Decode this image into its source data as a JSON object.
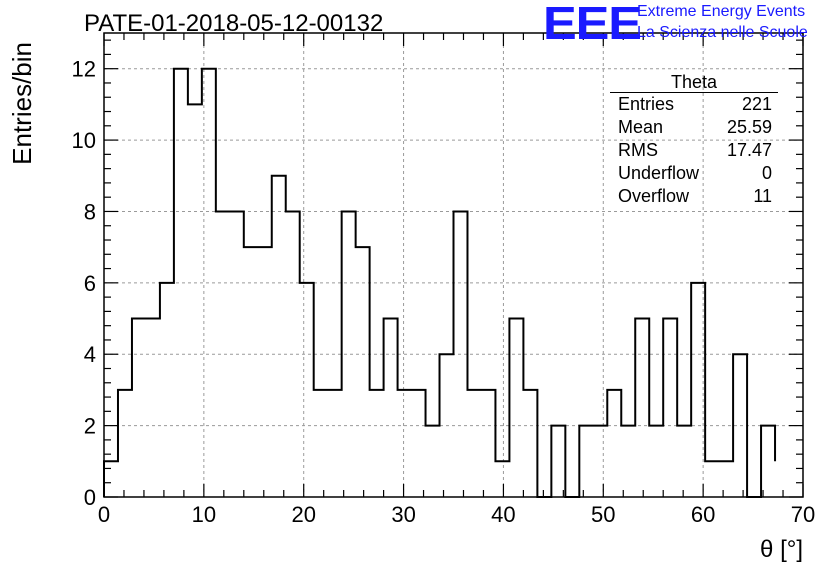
{
  "chart_data": {
    "type": "histogram",
    "title": "PATE-01-2018-05-12-00132",
    "xlabel": "θ [°]",
    "ylabel": "Entries/bin",
    "xlim": [
      0,
      70
    ],
    "ylim": [
      0,
      13
    ],
    "x_ticks": [
      "0",
      "10",
      "20",
      "30",
      "40",
      "50",
      "60",
      "70"
    ],
    "y_ticks": [
      "0",
      "2",
      "4",
      "6",
      "8",
      "10",
      "12"
    ],
    "grid": true,
    "bin_edges": [
      0,
      1.4,
      2.8,
      4.2,
      5.6,
      7.0,
      8.4,
      9.8,
      11.2,
      12.6,
      14.0,
      15.4,
      16.8,
      18.2,
      19.6,
      21.0,
      22.4,
      23.8,
      25.2,
      26.6,
      28.0,
      29.4,
      30.8,
      32.2,
      33.6,
      35.0,
      36.4,
      37.8,
      39.2,
      40.6,
      42.0,
      43.4,
      44.8,
      46.2,
      47.6,
      49.0,
      50.4,
      51.8,
      53.2,
      54.6,
      56.0,
      57.4,
      58.8,
      60.2,
      61.6,
      63.0,
      64.4,
      65.8,
      67.2
    ],
    "counts": [
      1,
      3,
      5,
      5,
      6,
      12,
      11,
      12,
      8,
      8,
      7,
      7,
      9,
      8,
      6,
      3,
      3,
      8,
      7,
      3,
      5,
      3,
      3,
      2,
      4,
      8,
      3,
      3,
      1,
      5,
      3,
      0,
      2,
      0,
      2,
      2,
      3,
      2,
      5,
      2,
      5,
      2,
      6,
      1,
      1,
      4,
      0,
      2,
      1
    ]
  },
  "stats_box": {
    "name": "Theta",
    "rows": [
      {
        "label": "Entries",
        "value": "221"
      },
      {
        "label": "Mean",
        "value": "25.59"
      },
      {
        "label": "RMS",
        "value": "17.47"
      },
      {
        "label": "Underflow",
        "value": "0"
      },
      {
        "label": "Overflow",
        "value": "11"
      }
    ]
  },
  "logo": {
    "mark": "EEE",
    "line1": "Extreme Energy Events",
    "line2": "La Scienza nelle Scuole"
  },
  "colors": {
    "logo": "#1a1aff",
    "histogram_line": "#000000",
    "grid": "#9a9a9a"
  }
}
